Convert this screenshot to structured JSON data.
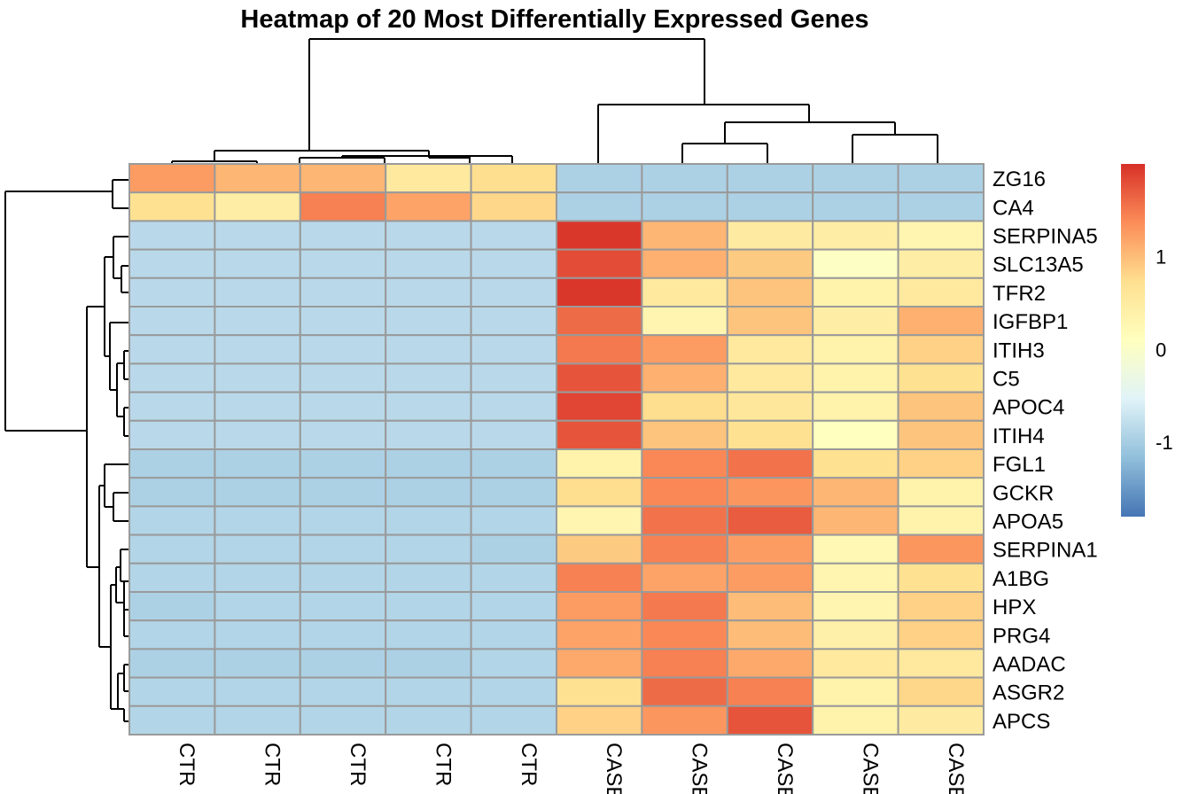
{
  "chart_data": {
    "type": "heatmap",
    "title": "Heatmap of 20 Most Differentially Expressed Genes",
    "rows": [
      "ZG16",
      "CA4",
      "SERPINA5",
      "SLC13A5",
      "TFR2",
      "IGFBP1",
      "ITIH3",
      "C5",
      "APOC4",
      "ITIH4",
      "FGL1",
      "GCKR",
      "APOA5",
      "SERPINA1",
      "A1BG",
      "HPX",
      "PRG4",
      "AADAC",
      "ASGR2",
      "APCS"
    ],
    "columns": [
      "CTR",
      "CTR",
      "CTR",
      "CTR",
      "CTR",
      "CASE",
      "CASE",
      "CASE",
      "CASE",
      "CASE"
    ],
    "column_label_visible_note": "CAS",
    "values": [
      [
        1.25,
        1.05,
        1.05,
        0.55,
        0.75,
        -0.95,
        -0.95,
        -0.95,
        -0.95,
        -0.95
      ],
      [
        0.7,
        0.45,
        1.45,
        1.2,
        0.8,
        -0.95,
        -0.95,
        -0.95,
        -0.95,
        -0.95
      ],
      [
        -0.85,
        -0.85,
        -0.85,
        -0.85,
        -0.85,
        1.95,
        1.05,
        0.5,
        0.45,
        0.3
      ],
      [
        -0.85,
        -0.85,
        -0.85,
        -0.85,
        -0.85,
        1.8,
        1.1,
        0.9,
        0.05,
        0.45
      ],
      [
        -0.85,
        -0.85,
        -0.85,
        -0.85,
        -0.85,
        1.95,
        0.55,
        0.95,
        0.35,
        0.55
      ],
      [
        -0.85,
        -0.85,
        -0.85,
        -0.85,
        -0.85,
        1.6,
        0.3,
        0.95,
        0.45,
        1.1
      ],
      [
        -0.85,
        -0.85,
        -0.85,
        -0.85,
        -0.85,
        1.5,
        1.25,
        0.55,
        0.35,
        0.85
      ],
      [
        -0.85,
        -0.85,
        -0.85,
        -0.85,
        -0.85,
        1.75,
        1.1,
        0.55,
        0.35,
        0.7
      ],
      [
        -0.85,
        -0.85,
        -0.85,
        -0.85,
        -0.85,
        1.85,
        0.75,
        0.6,
        0.35,
        0.95
      ],
      [
        -0.85,
        -0.85,
        -0.85,
        -0.85,
        -0.85,
        1.75,
        0.95,
        0.7,
        0.1,
        0.95
      ],
      [
        -0.95,
        -0.95,
        -0.95,
        -0.95,
        -0.95,
        0.35,
        1.4,
        1.55,
        0.7,
        0.85
      ],
      [
        -0.95,
        -0.95,
        -0.95,
        -0.95,
        -0.95,
        0.75,
        1.4,
        1.3,
        1.05,
        0.35
      ],
      [
        -0.9,
        -0.9,
        -0.9,
        -0.9,
        -0.9,
        0.3,
        1.55,
        1.7,
        1.05,
        0.35
      ],
      [
        -0.9,
        -0.9,
        -0.9,
        -0.9,
        -0.95,
        0.9,
        1.45,
        1.25,
        0.25,
        1.3
      ],
      [
        -0.9,
        -0.9,
        -0.9,
        -0.9,
        -0.9,
        1.45,
        1.2,
        1.25,
        0.3,
        0.7
      ],
      [
        -0.95,
        -0.9,
        -0.9,
        -0.9,
        -0.9,
        1.25,
        1.5,
        1.0,
        0.3,
        0.85
      ],
      [
        -0.9,
        -0.9,
        -0.9,
        -0.9,
        -0.9,
        1.2,
        1.4,
        1.0,
        0.4,
        0.85
      ],
      [
        -0.95,
        -0.95,
        -0.95,
        -0.95,
        -0.9,
        1.15,
        1.45,
        1.15,
        0.55,
        0.55
      ],
      [
        -0.9,
        -0.9,
        -0.9,
        -0.9,
        -0.9,
        0.7,
        1.6,
        1.45,
        0.35,
        0.8
      ],
      [
        -0.9,
        -0.9,
        -0.9,
        -0.9,
        -0.9,
        0.85,
        1.3,
        1.75,
        0.35,
        0.5
      ]
    ],
    "legend": {
      "ticks": [
        1,
        0,
        -1
      ],
      "tick_labels": [
        "1",
        "0",
        "-1"
      ],
      "range": [
        -1.8,
        2.0
      ],
      "colors": [
        "#4575B4",
        "#91BFDB",
        "#E0F3F8",
        "#FFFFBF",
        "#FEE090",
        "#FC8D59",
        "#D73027"
      ]
    },
    "row_dendrogram": true,
    "column_dendrogram": true
  }
}
